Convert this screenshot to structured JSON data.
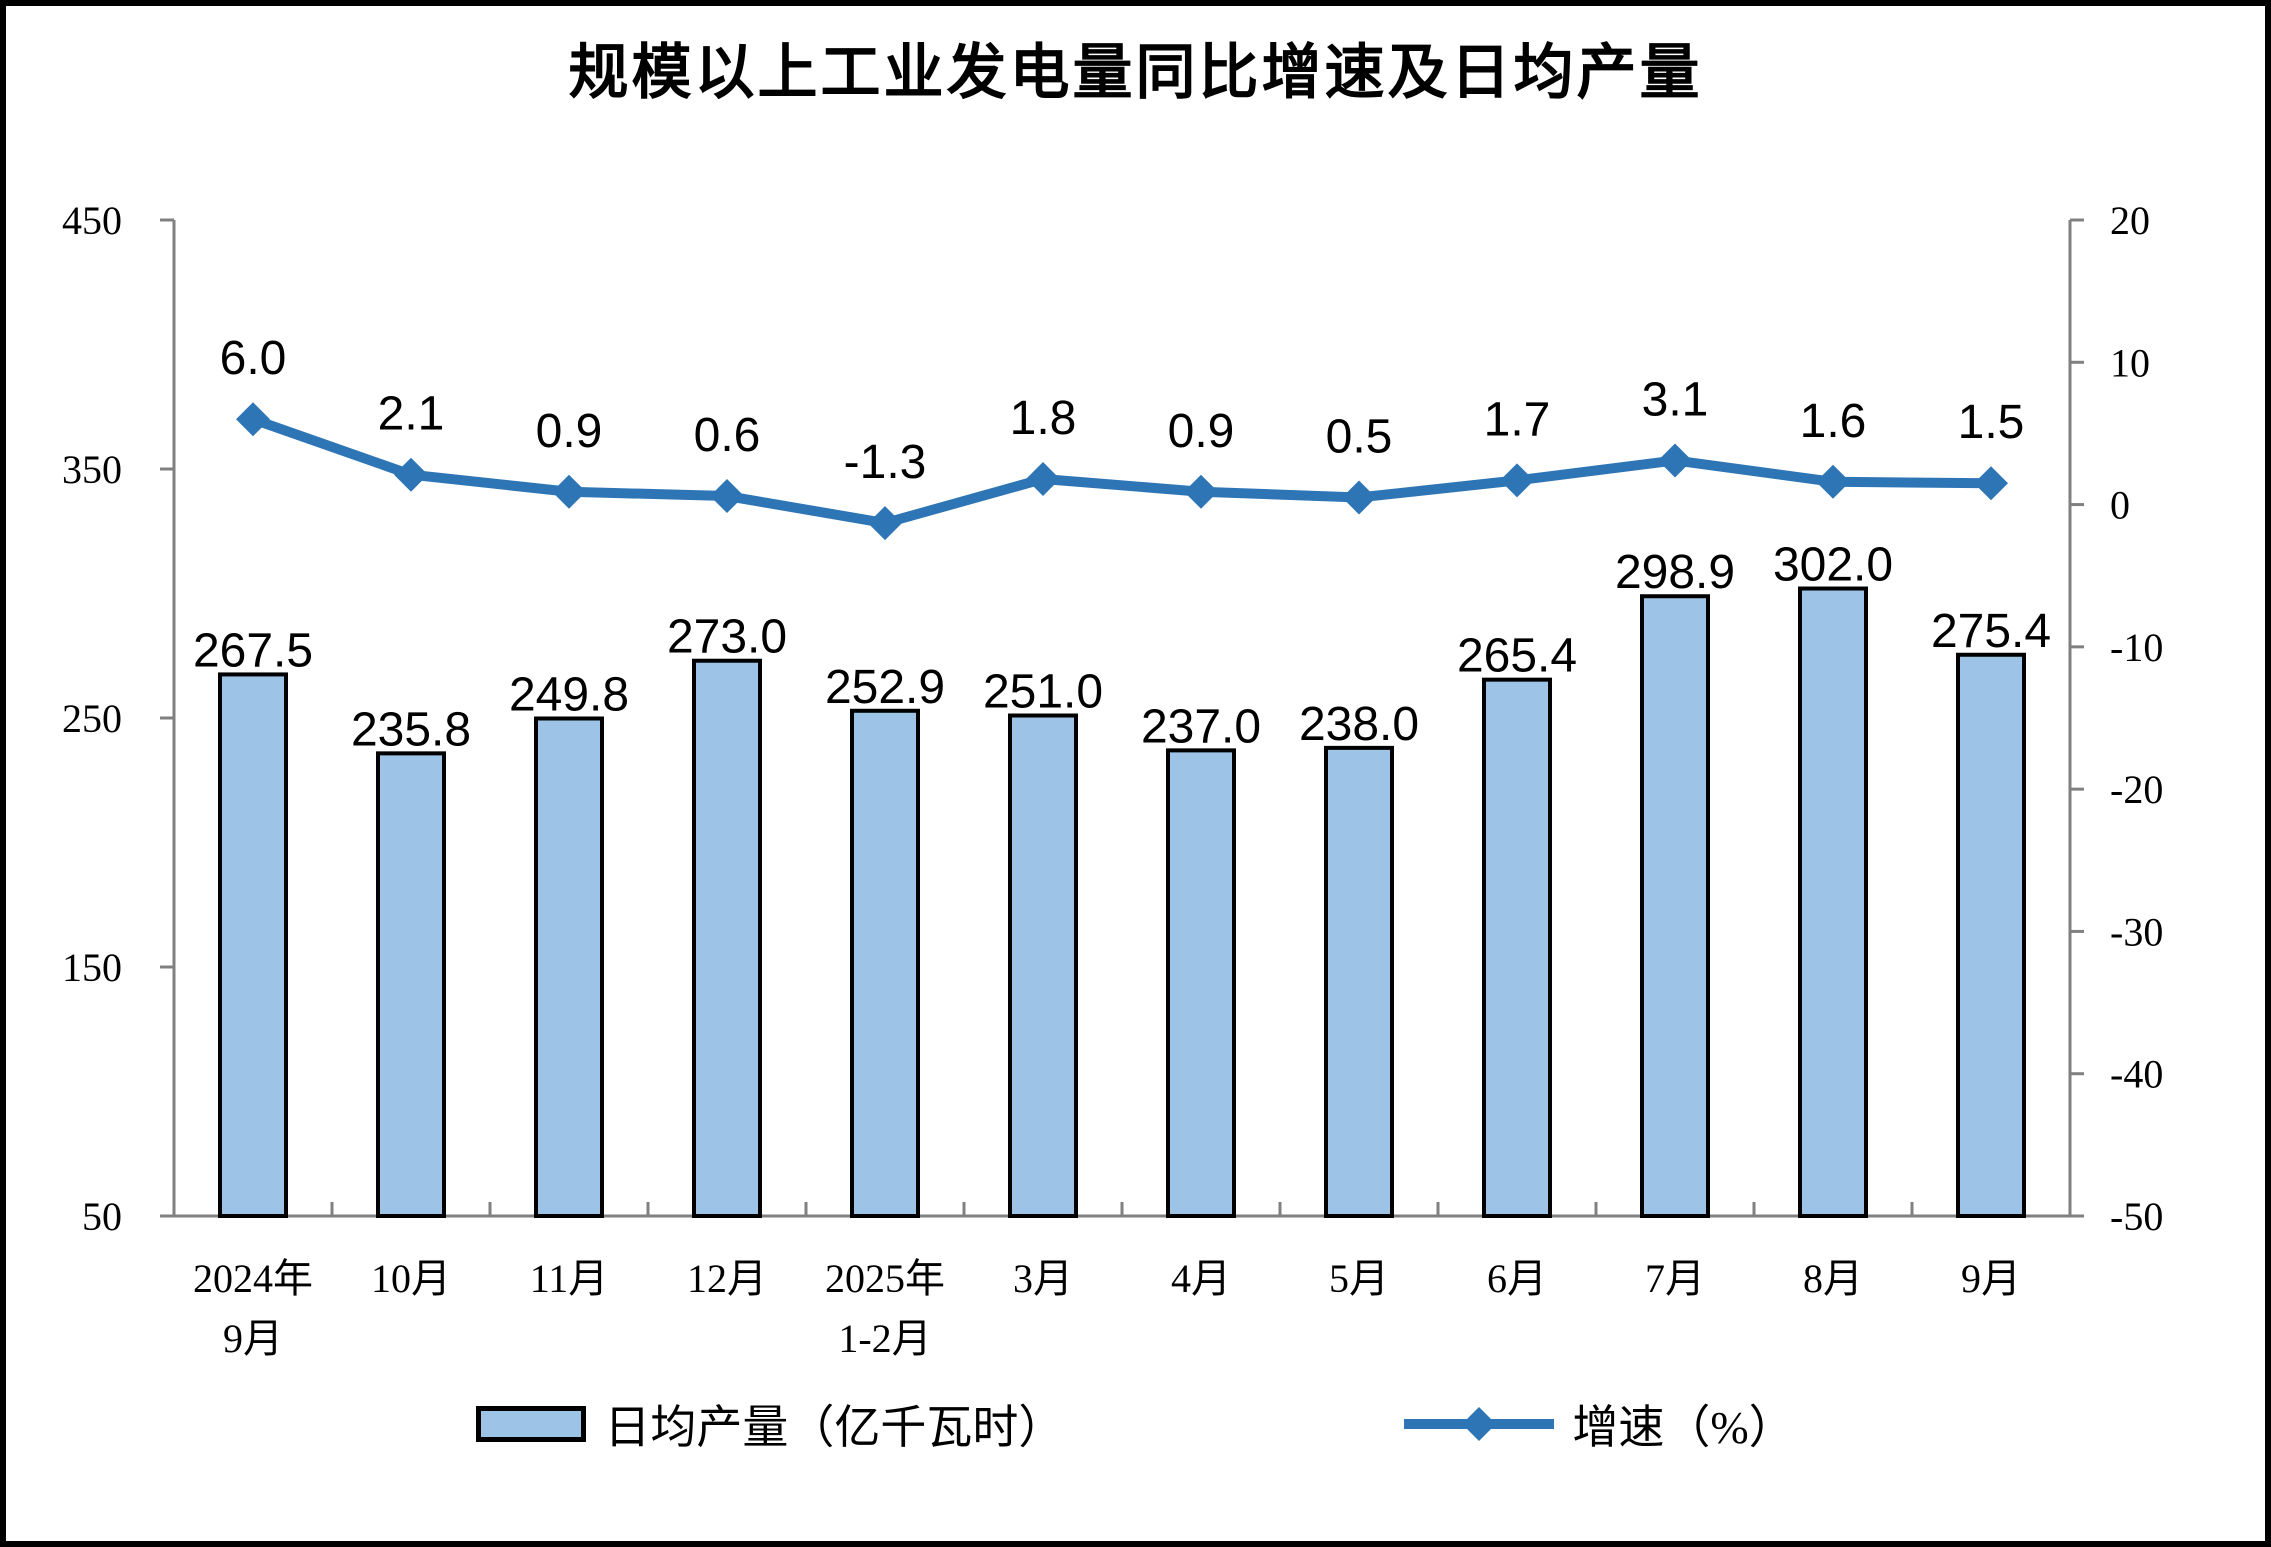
{
  "title": "规模以上工业发电量同比增速及日均产量",
  "legend": {
    "bar_label": "日均产量（亿千瓦时）",
    "line_label": "增速（%）"
  },
  "colors": {
    "bar_fill": "#9DC3E6",
    "bar_border": "#000000",
    "line": "#2E75B6",
    "axis": "#808080",
    "text": "#000000"
  },
  "chart_data": {
    "type": "combo",
    "title": "规模以上工业发电量同比增速及日均产量",
    "categories": [
      "2024年9月",
      "10月",
      "11月",
      "12月",
      "2025年1-2月",
      "3月",
      "4月",
      "5月",
      "6月",
      "7月",
      "8月",
      "9月"
    ],
    "categories_display": [
      [
        "2024年",
        "9月"
      ],
      [
        "10月"
      ],
      [
        "11月"
      ],
      [
        "12月"
      ],
      [
        "2025年",
        "1-2月"
      ],
      [
        "3月"
      ],
      [
        "4月"
      ],
      [
        "5月"
      ],
      [
        "6月"
      ],
      [
        "7月"
      ],
      [
        "8月"
      ],
      [
        "9月"
      ]
    ],
    "series": [
      {
        "name": "日均产量（亿千瓦时）",
        "type": "bar",
        "axis": "left",
        "values": [
          267.5,
          235.8,
          249.8,
          273.0,
          252.9,
          251.0,
          237.0,
          238.0,
          265.4,
          298.9,
          302.0,
          275.4
        ]
      },
      {
        "name": "增速（%）",
        "type": "line",
        "axis": "right",
        "values": [
          6.0,
          2.1,
          0.9,
          0.6,
          -1.3,
          1.8,
          0.9,
          0.5,
          1.7,
          3.1,
          1.6,
          1.5
        ]
      }
    ],
    "left_axis": {
      "min": 50,
      "max": 450,
      "tick_step": 100,
      "ticks": [
        450,
        350,
        250,
        150,
        50
      ]
    },
    "right_axis": {
      "min": -50,
      "max": 20,
      "tick_step": 10,
      "ticks": [
        20,
        10,
        0,
        -10,
        -20,
        -30,
        -40,
        -50
      ]
    },
    "grid": false,
    "legend_position": "bottom"
  }
}
